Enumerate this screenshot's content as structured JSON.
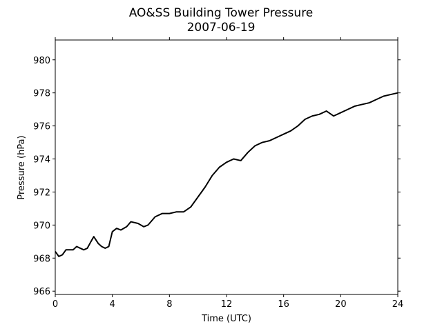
{
  "chart_data": {
    "type": "line",
    "title": "AO&SS Building Tower Pressure",
    "subtitle": "2007-06-19",
    "xlabel": "Time (UTC)",
    "ylabel": "Pressure (hPa)",
    "color": "#000000",
    "x": [
      0,
      0.25,
      0.5,
      0.75,
      1,
      1.25,
      1.5,
      1.75,
      2,
      2.25,
      2.5,
      2.7,
      3,
      3.25,
      3.5,
      3.75,
      4,
      4.3,
      4.6,
      5,
      5.3,
      5.8,
      6.2,
      6.5,
      7,
      7.5,
      8,
      8.5,
      9,
      9.5,
      10,
      10.5,
      11,
      11.5,
      12,
      12.5,
      13,
      13.5,
      14,
      14.5,
      15,
      15.5,
      16,
      16.5,
      17,
      17.5,
      18,
      18.5,
      19,
      19.5,
      20,
      20.5,
      21,
      21.5,
      22,
      22.5,
      23,
      23.5,
      24
    ],
    "values": [
      968.4,
      968.1,
      968.2,
      968.5,
      968.5,
      968.5,
      968.7,
      968.6,
      968.5,
      968.6,
      969.0,
      969.3,
      968.9,
      968.7,
      968.6,
      968.7,
      969.6,
      969.8,
      969.7,
      969.9,
      970.2,
      970.1,
      969.9,
      970.0,
      970.5,
      970.7,
      970.7,
      970.8,
      970.8,
      971.1,
      971.7,
      972.3,
      973.0,
      973.5,
      973.8,
      974.0,
      973.9,
      974.4,
      974.8,
      975.0,
      975.1,
      975.3,
      975.5,
      975.7,
      976.0,
      976.4,
      976.6,
      976.7,
      976.9,
      976.6,
      976.8,
      977.0,
      977.2,
      977.3,
      977.4,
      977.6,
      977.8,
      977.9,
      978.0
    ],
    "xlim": [
      0,
      24
    ],
    "xticks": [
      0,
      4,
      8,
      12,
      16,
      20,
      24
    ],
    "ylim": [
      965.8,
      981.2
    ],
    "yticks": [
      966,
      968,
      970,
      972,
      974,
      976,
      978,
      980
    ]
  }
}
